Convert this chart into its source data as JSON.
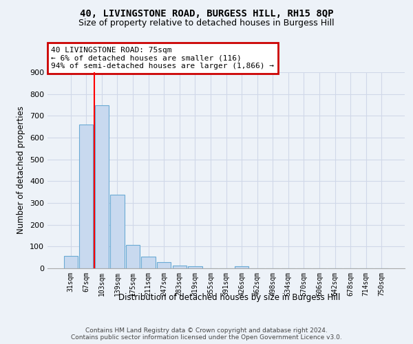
{
  "title": "40, LIVINGSTONE ROAD, BURGESS HILL, RH15 8QP",
  "subtitle": "Size of property relative to detached houses in Burgess Hill",
  "xlabel": "Distribution of detached houses by size in Burgess Hill",
  "ylabel": "Number of detached properties",
  "categories": [
    "31sqm",
    "67sqm",
    "103sqm",
    "139sqm",
    "175sqm",
    "211sqm",
    "247sqm",
    "283sqm",
    "319sqm",
    "355sqm",
    "391sqm",
    "426sqm",
    "462sqm",
    "498sqm",
    "534sqm",
    "570sqm",
    "606sqm",
    "642sqm",
    "678sqm",
    "714sqm",
    "750sqm"
  ],
  "values": [
    57,
    660,
    748,
    338,
    108,
    55,
    27,
    13,
    8,
    0,
    0,
    8,
    0,
    0,
    0,
    0,
    0,
    0,
    0,
    0,
    0
  ],
  "bar_color": "#c8d9ef",
  "bar_edge_color": "#6aaad4",
  "red_line_x": 1.5,
  "annotation_line1": "40 LIVINGSTONE ROAD: 75sqm",
  "annotation_line2": "← 6% of detached houses are smaller (116)",
  "annotation_line3": "94% of semi-detached houses are larger (1,866) →",
  "annotation_box_facecolor": "#ffffff",
  "annotation_box_edgecolor": "#cc0000",
  "ylim": [
    0,
    900
  ],
  "yticks": [
    0,
    100,
    200,
    300,
    400,
    500,
    600,
    700,
    800,
    900
  ],
  "grid_color": "#d0d8e8",
  "background_color": "#edf2f8",
  "footer_line1": "Contains HM Land Registry data © Crown copyright and database right 2024.",
  "footer_line2": "Contains public sector information licensed under the Open Government Licence v3.0."
}
